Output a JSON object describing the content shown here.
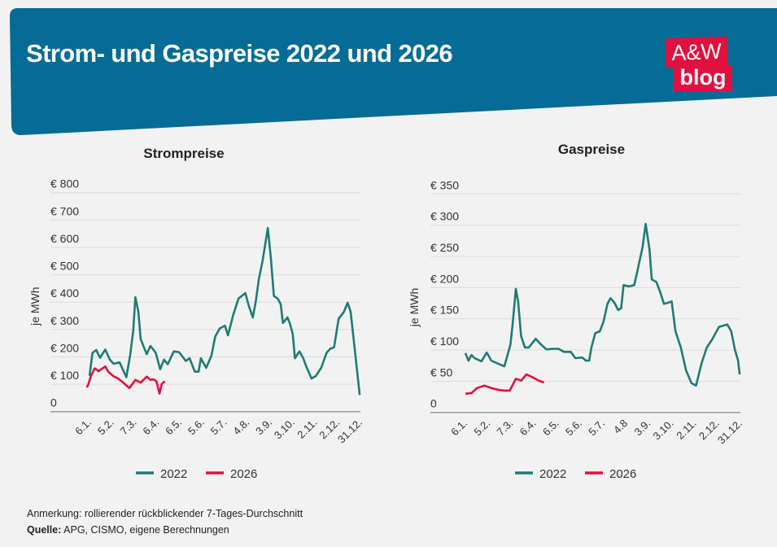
{
  "header": {
    "title": "Strom- und Gaspreise 2022 und 2026",
    "logo_line1": "A&W",
    "logo_line2": "blog"
  },
  "colors": {
    "header_bg": "#046c95",
    "series_2022": "#1f7b75",
    "series_2026": "#e3103f",
    "logo": "#e0103f"
  },
  "chart_data": [
    {
      "type": "line",
      "title": "Strompreise",
      "ylabel": "je MWh",
      "ylim": [
        0,
        800
      ],
      "yticks": [
        "0",
        "€ 100",
        "€ 200",
        "€ 300",
        "€ 400",
        "€ 500",
        "€ 600",
        "€ 700",
        "€ 800"
      ],
      "xticks": [
        "6.1.",
        "5.2.",
        "7.3.",
        "6.4.",
        "6.5.",
        "5.6.",
        "5.7.",
        "4.8.",
        "3.9.",
        "3.10.",
        "2.11.",
        "2.12.",
        "31.12."
      ],
      "grid": true,
      "legend": "bottom",
      "series": [
        {
          "name": "2022",
          "color": "#1f7b75",
          "points": [
            [
              "6.1.",
              131
            ],
            [
              "10.1.",
              215
            ],
            [
              "15.1.",
              225
            ],
            [
              "20.1.",
              197
            ],
            [
              "27.1.",
              227
            ],
            [
              "2.2.",
              190
            ],
            [
              "7.2.",
              175
            ],
            [
              "15.2.",
              180
            ],
            [
              "20.2.",
              150
            ],
            [
              "24.2.",
              126
            ],
            [
              "1.3.",
              205
            ],
            [
              "5.3.",
              294
            ],
            [
              "8.3.",
              418
            ],
            [
              "12.3.",
              364
            ],
            [
              "15.3.",
              265
            ],
            [
              "23.3.",
              210
            ],
            [
              "28.3.",
              240
            ],
            [
              "4.4.",
              215
            ],
            [
              "10.4.",
              155
            ],
            [
              "15.4.",
              190
            ],
            [
              "20.4.",
              173
            ],
            [
              "28.4.",
              220
            ],
            [
              "5.5.",
              217
            ],
            [
              "14.5.",
              185
            ],
            [
              "19.5.",
              195
            ],
            [
              "26.5.",
              146
            ],
            [
              "31.5.",
              146
            ],
            [
              "3.6.",
              195
            ],
            [
              "10.6.",
              160
            ],
            [
              "17.6.",
              205
            ],
            [
              "22.6.",
              274
            ],
            [
              "28.6.",
              304
            ],
            [
              "5.7.",
              314
            ],
            [
              "9.7.",
              279
            ],
            [
              "16.7.",
              354
            ],
            [
              "23.7.",
              413
            ],
            [
              "1.8.",
              433
            ],
            [
              "6.8.",
              384
            ],
            [
              "11.8.",
              344
            ],
            [
              "15.8.",
              403
            ],
            [
              "19.8.",
              483
            ],
            [
              "24.8.",
              552
            ],
            [
              "31.8.",
              671
            ],
            [
              "4.9.",
              562
            ],
            [
              "8.9.",
              423
            ],
            [
              "13.9.",
              413
            ],
            [
              "17.9.",
              393
            ],
            [
              "20.9.",
              324
            ],
            [
              "26.9.",
              344
            ],
            [
              "29.9.",
              324
            ],
            [
              "3.10.",
              284
            ],
            [
              "6.10.",
              195
            ],
            [
              "12.10.",
              220
            ],
            [
              "17.10.",
              195
            ],
            [
              "21.10.",
              165
            ],
            [
              "28.10.",
              121
            ],
            [
              "3.11.",
              131
            ],
            [
              "10.11.",
              161
            ],
            [
              "17.11.",
              215
            ],
            [
              "22.11.",
              230
            ],
            [
              "27.11.",
              235
            ],
            [
              "3.12.",
              339
            ],
            [
              "10.12.",
              364
            ],
            [
              "15.12.",
              398
            ],
            [
              "19.12.",
              364
            ],
            [
              "25.12.",
              215
            ],
            [
              "31.12.",
              61
            ]
          ]
        },
        {
          "name": "2026",
          "color": "#e3103f",
          "points": [
            [
              "2.1.",
              89
            ],
            [
              "4.1.",
              96
            ],
            [
              "8.1.",
              131
            ],
            [
              "13.1.",
              158
            ],
            [
              "18.1.",
              148
            ],
            [
              "27.1.",
              165
            ],
            [
              "31.1.",
              146
            ],
            [
              "6.2.",
              131
            ],
            [
              "13.2.",
              121
            ],
            [
              "20.2.",
              106
            ],
            [
              "28.2.",
              86
            ],
            [
              "8.3.",
              116
            ],
            [
              "15.3.",
              106
            ],
            [
              "23.3.",
              128
            ],
            [
              "28.3.",
              116
            ],
            [
              "1.4.",
              118
            ],
            [
              "5.4.",
              111
            ],
            [
              "9.4.",
              66
            ],
            [
              "12.4.",
              101
            ],
            [
              "16.4.",
              111
            ]
          ]
        }
      ]
    },
    {
      "type": "line",
      "title": "Gaspreise",
      "ylabel": "je MWh",
      "ylim": [
        0,
        350
      ],
      "yticks": [
        "0",
        "€ 50",
        "€ 100",
        "€ 150",
        "€ 200",
        "€ 250",
        "€ 300",
        "€ 350"
      ],
      "xticks": [
        "6.1.",
        "5.2.",
        "7.3.",
        "6.4.",
        "6.5.",
        "5.6.",
        "5.7.",
        "4.8",
        "3.9.",
        "3.10.",
        "2.11.",
        "2.12.",
        "31.12."
      ],
      "grid": true,
      "legend": "bottom",
      "series": [
        {
          "name": "2022",
          "color": "#1f7b75",
          "points": [
            [
              "6.1.",
              95
            ],
            [
              "10.1.",
              83
            ],
            [
              "14.1.",
              92
            ],
            [
              "18.1.",
              87
            ],
            [
              "27.1.",
              82
            ],
            [
              "3.2.",
              96
            ],
            [
              "9.2.",
              83
            ],
            [
              "16.2.",
              79
            ],
            [
              "26.2.",
              74
            ],
            [
              "2.3.",
              91
            ],
            [
              "6.3.",
              109
            ],
            [
              "9.3.",
              143
            ],
            [
              "13.3.",
              198
            ],
            [
              "16.3.",
              178
            ],
            [
              "20.3.",
              122
            ],
            [
              "25.3.",
              104
            ],
            [
              "30.3.",
              104
            ],
            [
              "8.4.",
              118
            ],
            [
              "14.4.",
              110
            ],
            [
              "22.4.",
              101
            ],
            [
              "1.5.",
              102
            ],
            [
              "8.5.",
              102
            ],
            [
              "15.5.",
              97
            ],
            [
              "24.5.",
              97
            ],
            [
              "30.5.",
              87
            ],
            [
              "8.6.",
              88
            ],
            [
              "13.6.",
              83
            ],
            [
              "17.6.",
              83
            ],
            [
              "20.6.",
              104
            ],
            [
              "25.6.",
              127
            ],
            [
              "1.7.",
              130
            ],
            [
              "6.7.",
              146
            ],
            [
              "11.7.",
              174
            ],
            [
              "15.7.",
              183
            ],
            [
              "20.7.",
              176
            ],
            [
              "25.7.",
              164
            ],
            [
              "29.7.",
              167
            ],
            [
              "1.8.",
              204
            ],
            [
              "8.8.",
              202
            ],
            [
              "15.8.",
              204
            ],
            [
              "19.8.",
              226
            ],
            [
              "26.8.",
              265
            ],
            [
              "30.8.",
              302
            ],
            [
              "4.9.",
              261
            ],
            [
              "7.9.",
              213
            ],
            [
              "13.9.",
              209
            ],
            [
              "18.9.",
              193
            ],
            [
              "23.9.",
              174
            ],
            [
              "29.9.",
              176
            ],
            [
              "3.10.",
              178
            ],
            [
              "8.10.",
              130
            ],
            [
              "15.10.",
              104
            ],
            [
              "22.10.",
              67
            ],
            [
              "29.10.",
              47
            ],
            [
              "4.11.",
              43
            ],
            [
              "11.11.",
              78
            ],
            [
              "18.11.",
              104
            ],
            [
              "25.11.",
              117
            ],
            [
              "4.12.",
              137
            ],
            [
              "15.12.",
              141
            ],
            [
              "20.12.",
              130
            ],
            [
              "25.12.",
              100
            ],
            [
              "29.12.",
              83
            ],
            [
              "31.12.",
              61
            ]
          ]
        },
        {
          "name": "2026",
          "color": "#e3103f",
          "points": [
            [
              "6.1.",
              30
            ],
            [
              "14.1.",
              31
            ],
            [
              "21.1.",
              39
            ],
            [
              "31.1.",
              43
            ],
            [
              "9.2.",
              39
            ],
            [
              "19.2.",
              36
            ],
            [
              "26.2.",
              35
            ],
            [
              "5.3.",
              35
            ],
            [
              "13.3.",
              54
            ],
            [
              "20.3.",
              51
            ],
            [
              "27.3.",
              61
            ],
            [
              "3.4.",
              57
            ],
            [
              "12.4.",
              51
            ],
            [
              "19.4.",
              48
            ]
          ]
        }
      ]
    }
  ],
  "footer": {
    "note": "Anmerkung: rollierender rückblickender 7-Tages-Durchschnitt",
    "source_label": "Quelle:",
    "source_text": " APG, CISMO, eigene Berechnungen"
  }
}
